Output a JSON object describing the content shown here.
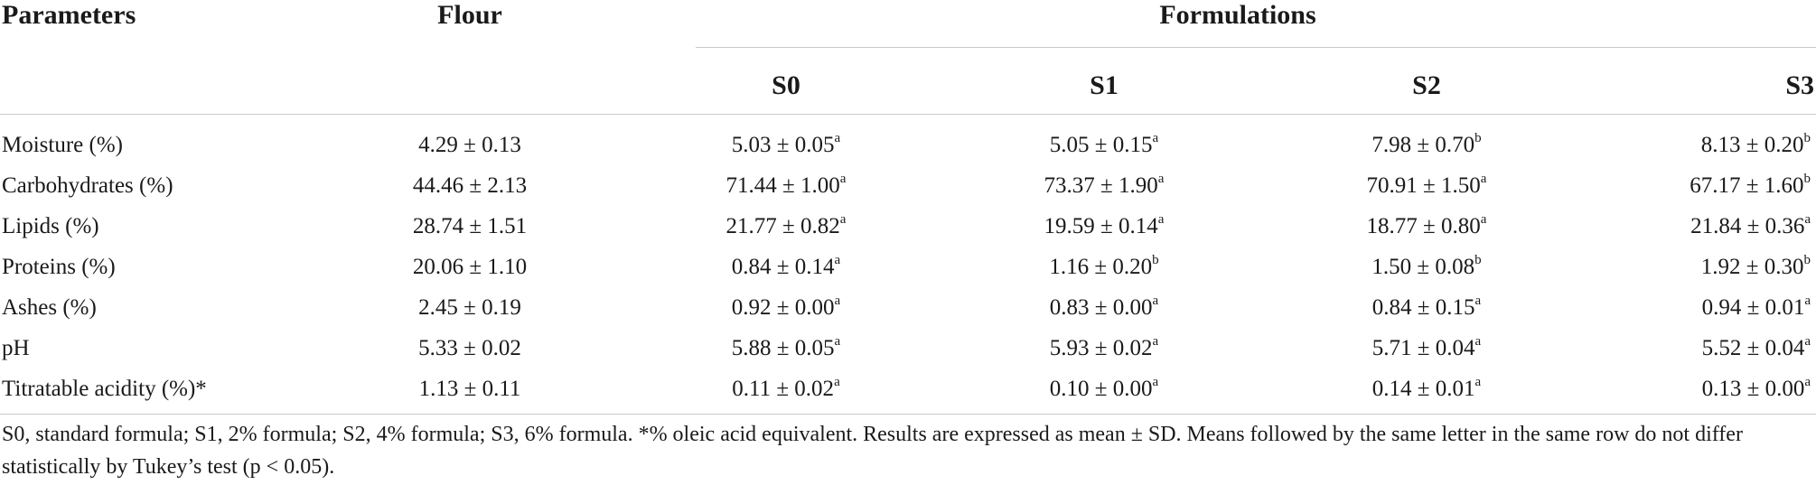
{
  "table": {
    "headers": {
      "parameters": "Parameters",
      "flour": "Flour",
      "formulations": "Formulations",
      "s0": "S0",
      "s1": "S1",
      "s2": "S2",
      "s3": "S3"
    },
    "rows": [
      {
        "param": "Moisture (%)",
        "flour": "4.29 ± 0.13",
        "s0": {
          "v": "5.03 ± 0.05",
          "sup": "a"
        },
        "s1": {
          "v": "5.05 ± 0.15",
          "sup": "a"
        },
        "s2": {
          "v": "7.98 ± 0.70",
          "sup": "b"
        },
        "s3": {
          "v": "8.13 ± 0.20",
          "sup": "b"
        }
      },
      {
        "param": "Carbohydrates (%)",
        "flour": "44.46 ± 2.13",
        "s0": {
          "v": "71.44 ± 1.00",
          "sup": "a"
        },
        "s1": {
          "v": "73.37 ± 1.90",
          "sup": "a"
        },
        "s2": {
          "v": "70.91 ± 1.50",
          "sup": "a"
        },
        "s3": {
          "v": "67.17 ± 1.60",
          "sup": "b"
        }
      },
      {
        "param": "Lipids (%)",
        "flour": "28.74 ± 1.51",
        "s0": {
          "v": "21.77 ± 0.82",
          "sup": "a"
        },
        "s1": {
          "v": "19.59 ± 0.14",
          "sup": "a"
        },
        "s2": {
          "v": "18.77 ± 0.80",
          "sup": "a"
        },
        "s3": {
          "v": "21.84 ± 0.36",
          "sup": "a"
        }
      },
      {
        "param": "Proteins (%)",
        "flour": "20.06 ± 1.10",
        "s0": {
          "v": "0.84 ± 0.14",
          "sup": "a"
        },
        "s1": {
          "v": "1.16 ± 0.20",
          "sup": "b"
        },
        "s2": {
          "v": "1.50 ± 0.08",
          "sup": "b"
        },
        "s3": {
          "v": "1.92 ± 0.30",
          "sup": "b"
        }
      },
      {
        "param": "Ashes (%)",
        "flour": "2.45 ± 0.19",
        "s0": {
          "v": "0.92 ± 0.00",
          "sup": "a"
        },
        "s1": {
          "v": "0.83 ± 0.00",
          "sup": "a"
        },
        "s2": {
          "v": "0.84 ± 0.15",
          "sup": "a"
        },
        "s3": {
          "v": "0.94 ± 0.01",
          "sup": "a"
        }
      },
      {
        "param": "pH",
        "flour": "5.33 ± 0.02",
        "s0": {
          "v": "5.88 ± 0.05",
          "sup": "a"
        },
        "s1": {
          "v": "5.93 ± 0.02",
          "sup": "a"
        },
        "s2": {
          "v": "5.71 ± 0.04",
          "sup": "a"
        },
        "s3": {
          "v": "5.52 ± 0.04",
          "sup": "a"
        }
      },
      {
        "param": "Titratable acidity (%)*",
        "flour": "1.13 ± 0.11",
        "s0": {
          "v": "0.11 ± 0.02",
          "sup": "a"
        },
        "s1": {
          "v": "0.10 ± 0.00",
          "sup": "a"
        },
        "s2": {
          "v": "0.14 ± 0.01",
          "sup": "a"
        },
        "s3": {
          "v": "0.13 ± 0.00",
          "sup": "a"
        }
      }
    ],
    "footnote": "S0, standard formula; S1, 2% formula; S2, 4% formula; S3, 6% formula. *% oleic acid equivalent. Results are expressed as mean ± SD. Means followed by the same letter in the same row do not differ statistically by Tukey’s test (p < 0.05)."
  }
}
